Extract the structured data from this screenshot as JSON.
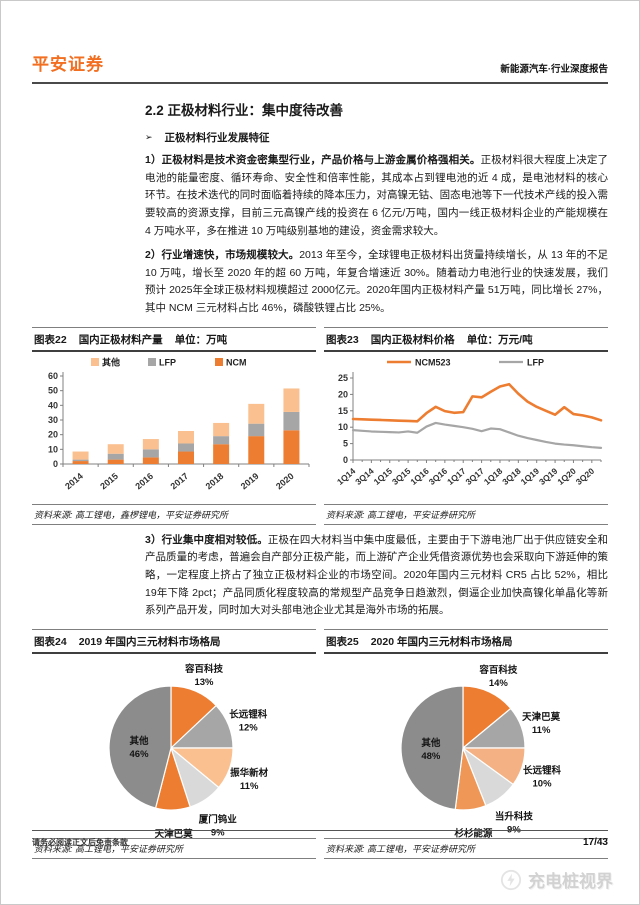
{
  "page": {
    "brand": "平安证券",
    "doc_type": "新能源汽车·行业深度报告",
    "section_title": "2.2 正极材料行业：集中度待改善",
    "bullet_marker": "➢",
    "bullet": "正极材料行业发展特征",
    "paragraphs": [
      {
        "lead": "1）正极材料是技术资金密集型行业，产品价格与上游金属价格强相关。",
        "text": "正极材料很大程度上决定了电池的能量密度、循环寿命、安全性和倍率性能，其成本占到锂电池的近 4 成，是电池材料的核心环节。在技术迭代的同时面临着持续的降本压力，对高镍无钴、固态电池等下一代技术产线的投入需要较高的资源支撑，目前三元高镍产线的投资在 6 亿元/万吨，国内一线正极材料企业的产能规模在 4 万吨水平，多在推进 10 万吨级别基地的建设，资金需求较大。"
      },
      {
        "lead": "2）行业增速快，市场规模较大。",
        "text": "2013 年至今，全球锂电正极材料出货量持续增长，从 13 年的不足 10 万吨，增长至 2020 年的超 60 万吨，年复合增速近 30%。随着动力电池行业的快速发展，我们预计 2025年全球正极材料规模超过 2000亿元。2020年国内正极材料产量 51万吨，同比增长 27%，其中 NCM 三元材料占比 46%，磷酸铁锂占比 25%。"
      },
      {
        "lead": "3）行业集中度相对较低。",
        "text": "正极在四大材料当中集中度最低，主要由于下游电池厂出于供应链安全和产品质量的考虑，普遍会自产部分正极产能，而上游矿产企业凭借资源优势也会采取向下游延伸的策略，一定程度上挤占了独立正极材料企业的市场空间。2020年国内三元材料 CR5 占比 52%，相比 19年下降 2pct；产品同质化程度较高的常规型产品竞争日趋激烈，倒逼企业加快高镍化单晶化等新系列产品开发，同时加大对头部电池企业尤其是海外市场的拓展。"
      }
    ],
    "figures": [
      {
        "number": "图表22",
        "title": "国内正极材料产量",
        "unit": "单位：万吨",
        "source": "资料来源: 高工锂电，鑫椤锂电，平安证券研究所"
      },
      {
        "number": "图表23",
        "title": "国内正极材料价格",
        "unit": "单位：万元/吨",
        "source": "资料来源: 高工锂电，平安证券研究所"
      },
      {
        "number": "图表24",
        "title": "2019 年国内三元材料市场格局",
        "unit": "",
        "source": "资料来源: 高工锂电，平安证券研究所"
      },
      {
        "number": "图表25",
        "title": "2020 年国内三元材料市场格局",
        "unit": "",
        "source": "资料来源: 高工锂电，平安证券研究所"
      }
    ],
    "footer": {
      "disclaimer": "请务必阅读正文后免责条款",
      "page_num": "17/43"
    },
    "watermark": "充电桩视界"
  },
  "colors": {
    "brand_orange": "#f26f21",
    "chart_orange": "#ED7D31",
    "chart_gray": "#A6A6A6",
    "chart_peach": "#FAC090",
    "chart_light_gray": "#D9D9D9",
    "chart_dark_gray": "#8C8C8C"
  },
  "chart_data": [
    {
      "type": "bar",
      "stacked": true,
      "title": "国内正极材料产量",
      "ylabel": "万吨",
      "categories": [
        "2014",
        "2015",
        "2016",
        "2017",
        "2018",
        "2019",
        "2020"
      ],
      "series": [
        {
          "name": "NCM",
          "color": "#ED7D31",
          "values": [
            2,
            3,
            4.5,
            8.5,
            13.5,
            19,
            23
          ]
        },
        {
          "name": "LFP",
          "color": "#A6A6A6",
          "values": [
            1,
            4,
            5.5,
            5.5,
            5.5,
            8.5,
            12.5
          ]
        },
        {
          "name": "其他",
          "color": "#FAC090",
          "values": [
            5.5,
            6.5,
            7,
            8.5,
            9,
            13.5,
            16
          ]
        }
      ],
      "legend_order": [
        "其他",
        "LFP",
        "NCM"
      ],
      "ylim": [
        0,
        60
      ],
      "ytick_step": 10,
      "grid": false,
      "legend_position": "top"
    },
    {
      "type": "line",
      "title": "国内正极材料价格",
      "ylabel": "万元/吨",
      "x": [
        "1Q14",
        "2Q14",
        "3Q14",
        "4Q14",
        "1Q15",
        "2Q15",
        "3Q15",
        "4Q15",
        "1Q16",
        "2Q16",
        "3Q16",
        "4Q16",
        "1Q17",
        "2Q17",
        "3Q17",
        "4Q17",
        "1Q18",
        "2Q18",
        "3Q18",
        "4Q18",
        "1Q19",
        "2Q19",
        "3Q19",
        "4Q19",
        "1Q20",
        "2Q20",
        "3Q20",
        "4Q20"
      ],
      "xtick_every": 2,
      "series": [
        {
          "name": "NCM523",
          "color": "#ED7D31",
          "width": 2.6,
          "values": [
            12.5,
            12.4,
            12.3,
            12.2,
            12.1,
            12.0,
            11.9,
            11.8,
            14.3,
            16.2,
            14.9,
            14.4,
            14.6,
            19.4,
            19.1,
            20.8,
            22.4,
            23.1,
            20.2,
            17.8,
            16.2,
            15.0,
            13.8,
            16.1,
            14.0,
            13.6,
            13.0,
            12.1
          ]
        },
        {
          "name": "LFP",
          "color": "#A6A6A6",
          "width": 2.2,
          "values": [
            9.1,
            8.9,
            8.7,
            8.6,
            8.5,
            8.4,
            8.7,
            8.3,
            10.2,
            11.3,
            10.8,
            10.4,
            10.0,
            9.5,
            8.8,
            9.6,
            9.4,
            8.4,
            7.4,
            6.7,
            6.1,
            5.5,
            5.0,
            4.7,
            4.5,
            4.2,
            3.9,
            3.7
          ]
        }
      ],
      "ylim": [
        0,
        25
      ],
      "ytick_step": 5,
      "grid": false,
      "legend_position": "top"
    },
    {
      "type": "pie",
      "title": "2019 年国内三元材料市场格局",
      "slices": [
        {
          "label": "容百科技",
          "value": 13,
          "color": "#ED7D31"
        },
        {
          "label": "长远锂科",
          "value": 12,
          "color": "#A6A6A6"
        },
        {
          "label": "振华新材",
          "value": 11,
          "color": "#FAC090"
        },
        {
          "label": "厦门钨业",
          "value": 9,
          "color": "#D9D9D9"
        },
        {
          "label": "天津巴莫",
          "value": 9,
          "color": "#ED7D31"
        },
        {
          "label": "其他",
          "value": 46,
          "color": "#8C8C8C"
        }
      ]
    },
    {
      "type": "pie",
      "title": "2020 年国内三元材料市场格局",
      "slices": [
        {
          "label": "容百科技",
          "value": 14,
          "color": "#ED7D31"
        },
        {
          "label": "天津巴莫",
          "value": 11,
          "color": "#A6A6A6"
        },
        {
          "label": "长远锂科",
          "value": 10,
          "color": "#F4B183"
        },
        {
          "label": "当升科技",
          "value": 9,
          "color": "#D9D9D9"
        },
        {
          "label": "杉杉能源",
          "value": 8,
          "color": "#EF9757"
        },
        {
          "label": "其他",
          "value": 48,
          "color": "#8C8C8C"
        }
      ]
    }
  ]
}
